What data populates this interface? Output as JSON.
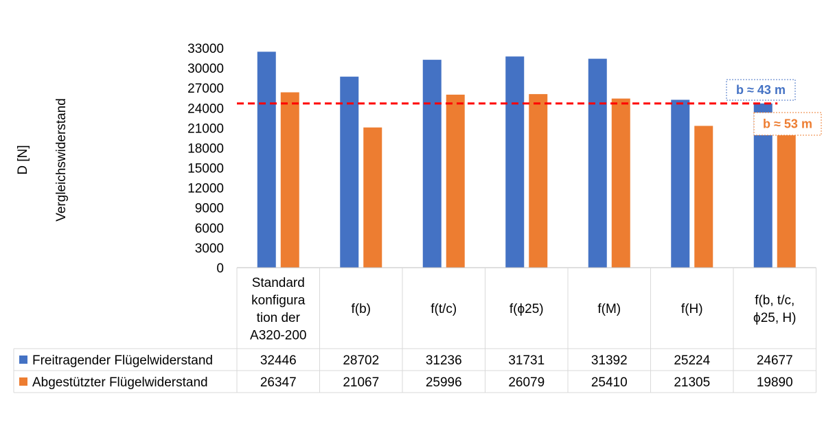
{
  "chart_data": {
    "type": "bar",
    "ylabel_outer": "D [N]",
    "ylabel_inner": "Vergleichswiderstand",
    "ylim": [
      0,
      33000
    ],
    "yticks": [
      "0",
      "3000",
      "6000",
      "9000",
      "12000",
      "15000",
      "18000",
      "21000",
      "24000",
      "27000",
      "30000",
      "33000"
    ],
    "categories": [
      [
        "Standard",
        "konfigura",
        "tion der",
        "A320-200"
      ],
      [
        "f(b)"
      ],
      [
        "f(t/c)"
      ],
      [
        "f(ϕ25)"
      ],
      [
        "f(M)"
      ],
      [
        "f(H)"
      ],
      [
        "f(b, t/c,",
        "ϕ25, H)"
      ]
    ],
    "series": [
      {
        "name": "Freitragender Flügelwiderstand",
        "color": "#4472C4",
        "values": [
          32446,
          28702,
          31236,
          31731,
          31392,
          25224,
          24677
        ]
      },
      {
        "name": "Abgestützter Flügelwiderstand",
        "color": "#ED7D31",
        "values": [
          26347,
          21067,
          25996,
          26079,
          25410,
          21305,
          19890
        ]
      }
    ],
    "reference_line": {
      "value": 24677,
      "color": "#FF0000",
      "style": "dashed"
    },
    "annotations": [
      {
        "text": "b ≈ 43 m",
        "color": "#4472C4",
        "series": 0
      },
      {
        "text": "b ≈ 53 m",
        "color": "#ED7D31",
        "series": 1
      }
    ],
    "grid": false,
    "legend": "data-table"
  }
}
